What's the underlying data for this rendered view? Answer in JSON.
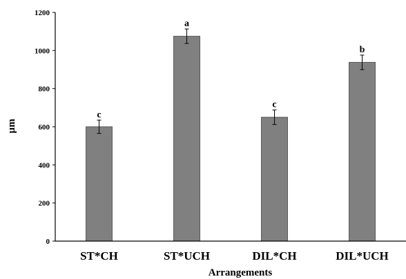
{
  "chart_data": {
    "type": "bar",
    "categories": [
      "ST*CH",
      "ST*UCH",
      "DIL*CH",
      "DIL*UCH"
    ],
    "values": [
      600,
      1075,
      650,
      938
    ],
    "errors": [
      35,
      38,
      38,
      38
    ],
    "significance_labels": [
      "c",
      "a",
      "c",
      "b"
    ],
    "xlabel": "Arrangements",
    "ylabel": "µm",
    "ylim": [
      0,
      1200
    ],
    "yticks": [
      0,
      200,
      400,
      600,
      800,
      1000,
      1200
    ],
    "grid": false,
    "legend": "none",
    "bar_color": "#808080",
    "bar_edge_color": "#5a5a5a",
    "axis_color": "#000000"
  }
}
